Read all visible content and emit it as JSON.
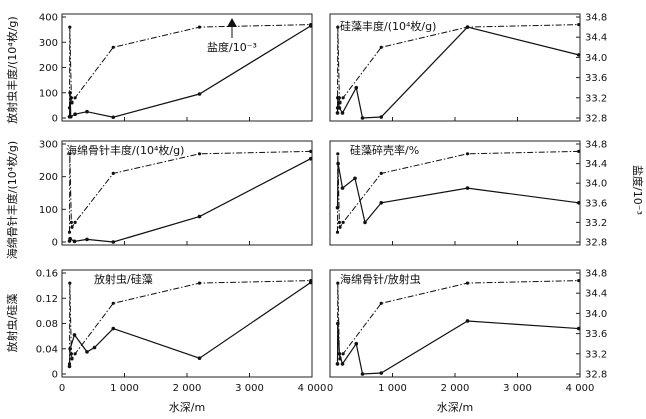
{
  "chart_data": {
    "type": "line",
    "series_styles": {
      "abundance": "solid",
      "salinity": "dash-dot"
    },
    "x_axis": {
      "label": "水深/m",
      "range": [
        0,
        4000
      ],
      "ticks": [
        0,
        1000,
        2000,
        3000,
        4000
      ],
      "tick_labels": [
        "0",
        "1 000",
        "2 000",
        "3 000",
        "4 000"
      ]
    },
    "salinity_axis": {
      "label": "盐度/10⁻³",
      "range": [
        32.8,
        34.8
      ],
      "ticks": [
        32.8,
        33.2,
        33.6,
        34.0,
        34.4,
        34.8
      ],
      "tick_labels": [
        "32.8",
        "33.2",
        "33.6",
        "34.0",
        "34.4",
        "34.8"
      ]
    },
    "salinity_series": {
      "name": "盐度",
      "x": [
        120,
        125,
        150,
        160,
        210,
        820,
        2200,
        3980
      ],
      "y": [
        33.0,
        34.6,
        33.2,
        33.1,
        33.2,
        34.2,
        34.6,
        34.65
      ]
    },
    "panels": [
      {
        "id": "radiolaria",
        "title": "放射虫丰度/(10⁴枚/g)",
        "ylabel": "放射虫丰度/(10⁴枚/g)",
        "ylim": [
          0,
          400
        ],
        "ticks": [
          0,
          100,
          200,
          300,
          400
        ],
        "tick_labels": [
          "0",
          "100",
          "200",
          "300",
          "400"
        ],
        "annotation": "盐度/10⁻³",
        "abundance": {
          "name": "放射虫丰度",
          "x": [
            120,
            130,
            140,
            210,
            400,
            820,
            2200,
            3980
          ],
          "y": [
            5,
            100,
            5,
            15,
            25,
            3,
            95,
            365
          ]
        }
      },
      {
        "id": "diatom",
        "title": "硅藻丰度/(10⁴枚/g)",
        "abundance": {
          "name": "硅藻丰度",
          "x": [
            120,
            125,
            150,
            200,
            420,
            520,
            820,
            2200,
            3980
          ],
          "y": [
            32.9,
            33.2,
            33.0,
            32.9,
            33.4,
            32.8,
            32.82,
            34.6,
            34.05
          ]
        }
      },
      {
        "id": "sponge",
        "title": "海绵骨针丰度/(10⁴枚/g)",
        "ylabel": "海绵骨针丰度/(10⁴枚/g)",
        "ylim": [
          0,
          300
        ],
        "ticks": [
          0,
          100,
          200,
          300
        ],
        "tick_labels": [
          "0",
          "100",
          "200",
          "300"
        ],
        "abundance": {
          "name": "海绵骨针丰度",
          "x": [
            120,
            130,
            200,
            400,
            820,
            2200,
            3980
          ],
          "y": [
            3,
            10,
            2,
            8,
            0,
            78,
            255
          ]
        }
      },
      {
        "id": "diatom-fragment",
        "title": "硅藻碎壳率/%",
        "abundance": {
          "name": "硅藻碎壳率",
          "x": [
            120,
            130,
            200,
            400,
            560,
            820,
            2200,
            3980
          ],
          "y": [
            33.5,
            34.4,
            33.9,
            34.1,
            33.2,
            33.6,
            33.9,
            33.6
          ]
        }
      },
      {
        "id": "radiolaria-diatom",
        "title": "放射虫/硅藻",
        "ylabel": "放射虫/硅藻",
        "ylim": [
          0,
          0.16
        ],
        "ticks": [
          0,
          0.04,
          0.08,
          0.12,
          0.16
        ],
        "tick_labels": [
          "0",
          "0.04",
          "0.08",
          "0.12",
          "0.16"
        ],
        "abundance": {
          "name": "放射虫/硅藻",
          "x": [
            120,
            130,
            200,
            400,
            520,
            820,
            2200,
            3980
          ],
          "y": [
            0.012,
            0.04,
            0.062,
            0.035,
            0.042,
            0.072,
            0.025,
            0.145
          ]
        }
      },
      {
        "id": "sponge-radiolaria",
        "title": "海绵骨针/放射虫",
        "abundance": {
          "name": "海绵骨针/放射虫",
          "x": [
            120,
            125,
            150,
            200,
            420,
            520,
            820,
            2200,
            3980
          ],
          "y": [
            33.0,
            33.8,
            33.2,
            33.0,
            33.4,
            32.8,
            32.82,
            33.85,
            33.7
          ]
        }
      }
    ]
  }
}
